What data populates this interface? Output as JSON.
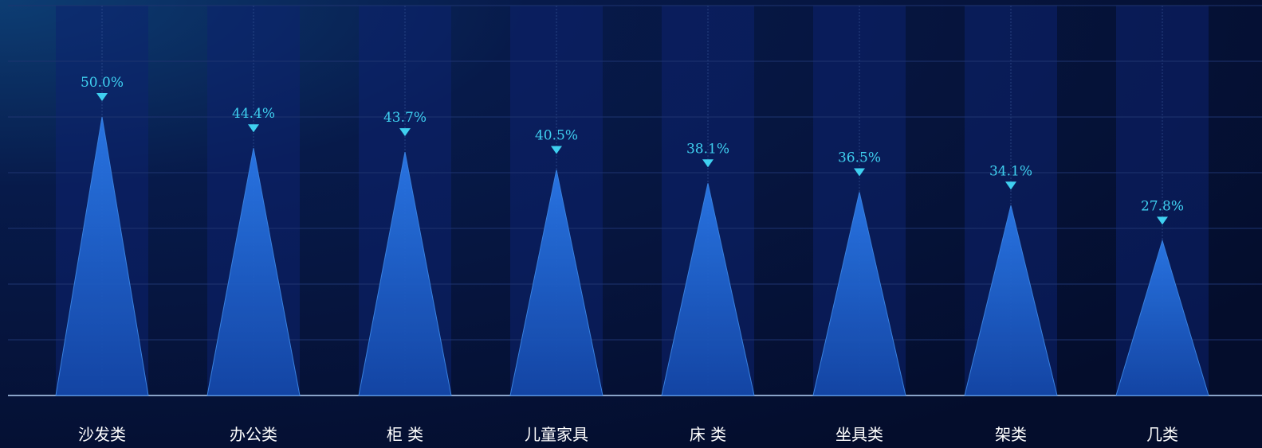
{
  "chart_data": {
    "type": "pictorial-bar",
    "categories": [
      "沙发类",
      "办公类",
      "柜 类",
      "儿童家具",
      "床 类",
      "坐具类",
      "架类",
      "几类"
    ],
    "values": [
      50.0,
      44.4,
      43.7,
      40.5,
      38.1,
      36.5,
      34.1,
      27.8
    ],
    "value_labels": [
      "50.0%",
      "44.4%",
      "43.7%",
      "40.5%",
      "38.1%",
      "36.5%",
      "34.1%",
      "27.8%"
    ],
    "color": "#1a5fd0",
    "ylim": [
      0,
      70
    ],
    "yticks": [
      0,
      10,
      20,
      30,
      40,
      50,
      60,
      70
    ],
    "grid": true
  }
}
